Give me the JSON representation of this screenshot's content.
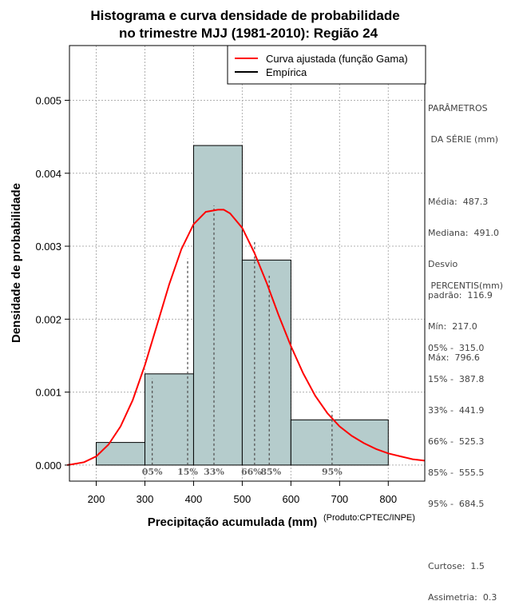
{
  "chart_data": {
    "type": "bar",
    "title": [
      "Histograma e curva densidade de probabilidade",
      "no trimestre MJJ (1981-2010): Região 24"
    ],
    "xlabel": "Precipitação acumulada (mm)",
    "ylabel": "Densidade de probabilidade",
    "credit": "(Produto:CPTEC/INPE)",
    "xlim": [
      145,
      875
    ],
    "ylim": [
      -0.00022,
      0.00575
    ],
    "x_ticks": [
      200,
      300,
      400,
      500,
      600,
      700,
      800
    ],
    "y_ticks": [
      0.0,
      0.001,
      0.002,
      0.003,
      0.004,
      0.005
    ],
    "y_tick_labels": [
      "0.000",
      "0.001",
      "0.002",
      "0.003",
      "0.004",
      "0.005"
    ],
    "grid": true,
    "bins": [
      {
        "x0": 200,
        "x1": 300,
        "density": 0.00031
      },
      {
        "x0": 300,
        "x1": 400,
        "density": 0.00125
      },
      {
        "x0": 400,
        "x1": 500,
        "density": 0.00438
      },
      {
        "x0": 500,
        "x1": 600,
        "density": 0.00281
      },
      {
        "x0": 600,
        "x1": 800,
        "density": 0.00062
      }
    ],
    "bar_color": "#b5cccc",
    "curve": {
      "name": "Curva ajustada (função Gama)",
      "color": "#ff0000",
      "x": [
        140,
        150,
        175,
        200,
        225,
        250,
        275,
        300,
        325,
        350,
        375,
        400,
        425,
        450,
        462,
        475,
        500,
        525,
        550,
        575,
        600,
        625,
        650,
        675,
        700,
        725,
        750,
        775,
        800,
        825,
        850,
        875
      ],
      "y": [
        0.0,
        1e-05,
        4e-05,
        0.00012,
        0.00028,
        0.00053,
        0.00089,
        0.00137,
        0.00192,
        0.00248,
        0.00296,
        0.0033,
        0.00347,
        0.0035,
        0.0035,
        0.00345,
        0.00325,
        0.00291,
        0.0025,
        0.00205,
        0.00163,
        0.00126,
        0.00095,
        0.00071,
        0.00053,
        0.0004,
        0.0003,
        0.00022,
        0.00016,
        0.00012,
        8e-05,
        6e-05
      ]
    },
    "legend": [
      {
        "label": "Curva ajustada (função Gama)",
        "color": "#ff0000"
      },
      {
        "label": "Empírica",
        "color": "#000000"
      }
    ],
    "legend_position": "top-right",
    "percentiles": [
      {
        "label": "05%",
        "value": 315.0
      },
      {
        "label": "15%",
        "value": 387.8
      },
      {
        "label": "33%",
        "value": 441.9
      },
      {
        "label": "66%",
        "value": 525.3
      },
      {
        "label": "85%",
        "value": 555.5
      },
      {
        "label": "95%",
        "value": 684.5
      }
    ]
  },
  "stats_panel": {
    "header_line1": "PARÂMETROS",
    "header_line2": " DA SÉRIE (mm)",
    "media": "Média:  487.3",
    "mediana": "Mediana:  491.0",
    "desvio1": "Desvio",
    "desvio2": "padrão:  116.9",
    "min": "Mín:  217.0",
    "max": "Máx:  796.6"
  },
  "percentis_panel": {
    "header": " PERCENTIS(mm)",
    "p05": "05% -  315.0",
    "p15": "15% -  387.8",
    "p33": "33% -  441.9",
    "p66": "66% -  525.3",
    "p85": "85% -  555.5",
    "p95": "95% -  684.5",
    "curtose": "Curtose:  1.5",
    "assimetria": "Assimetria:  0.3"
  }
}
